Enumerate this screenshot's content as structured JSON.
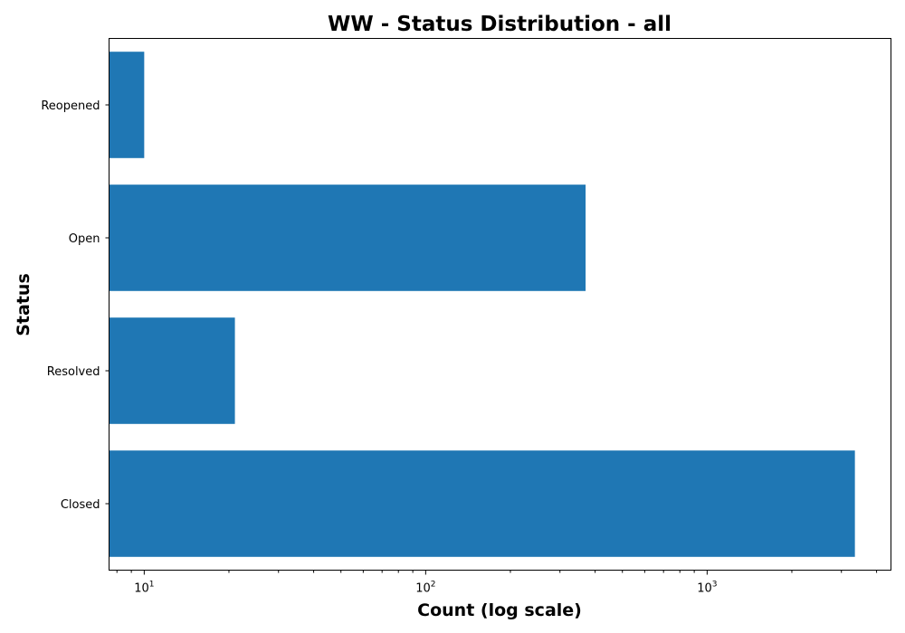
{
  "chart_data": {
    "type": "bar",
    "orientation": "horizontal",
    "title": "WW - Status Distribution - all",
    "xlabel": "Count (log scale)",
    "ylabel": "Status",
    "x_scale": "log",
    "xlim": [
      7.5,
      4500
    ],
    "x_ticks": [
      {
        "value": 10,
        "base": "10",
        "exp": "1"
      },
      {
        "value": 100,
        "base": "10",
        "exp": "2"
      },
      {
        "value": 1000,
        "base": "10",
        "exp": "3"
      }
    ],
    "categories": [
      "Closed",
      "Resolved",
      "Open",
      "Reopened"
    ],
    "values": [
      3350,
      21,
      370,
      10
    ],
    "bar_color": "#1f77b4",
    "grid": false
  }
}
